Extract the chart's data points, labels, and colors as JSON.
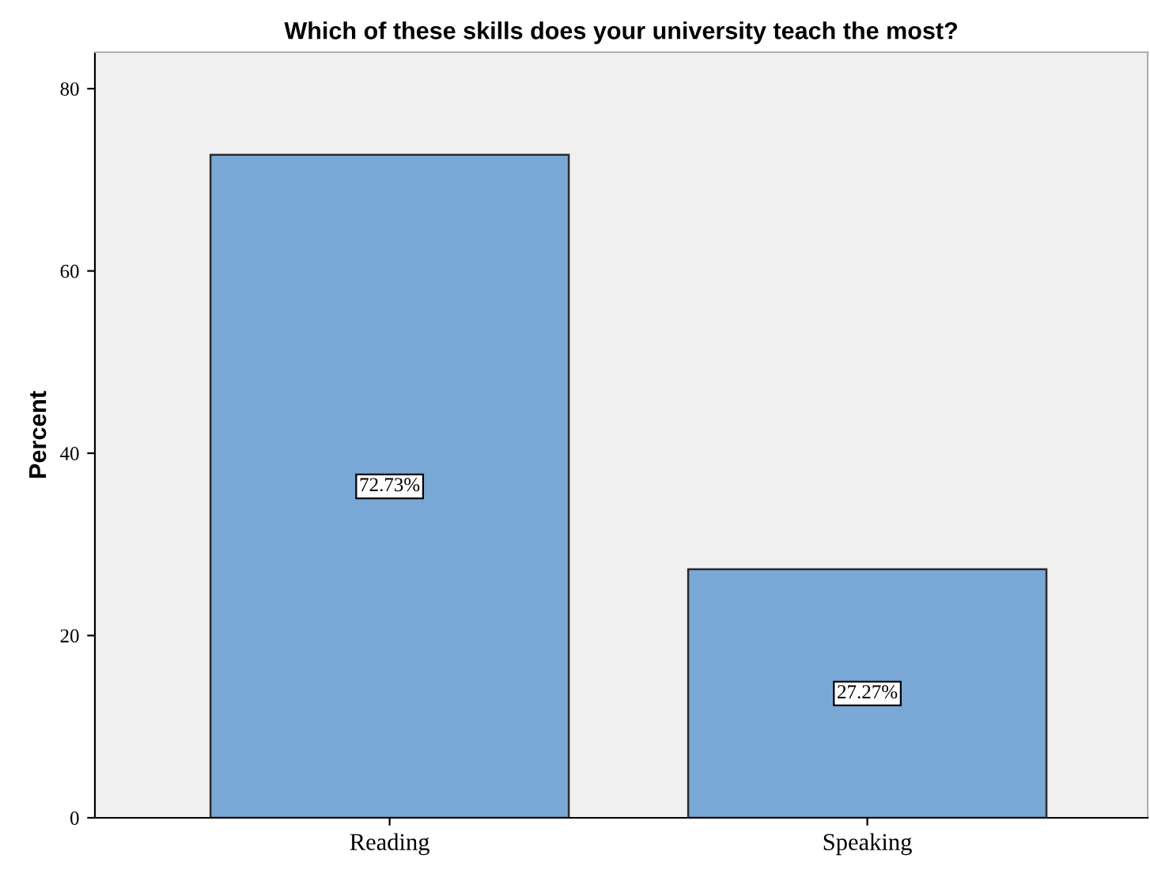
{
  "chart_data": {
    "type": "bar",
    "title": "Which of these skills does your university teach the most?",
    "ylabel": "Percent",
    "categories": [
      "Reading",
      "Speaking"
    ],
    "values": [
      72.73,
      27.27
    ],
    "value_labels": [
      "72.73%",
      "27.27%"
    ],
    "color": "#79a8d6",
    "ylim": [
      0,
      84
    ],
    "yticks": [
      0,
      20,
      40,
      60,
      80
    ],
    "grid": false,
    "legend": false
  }
}
